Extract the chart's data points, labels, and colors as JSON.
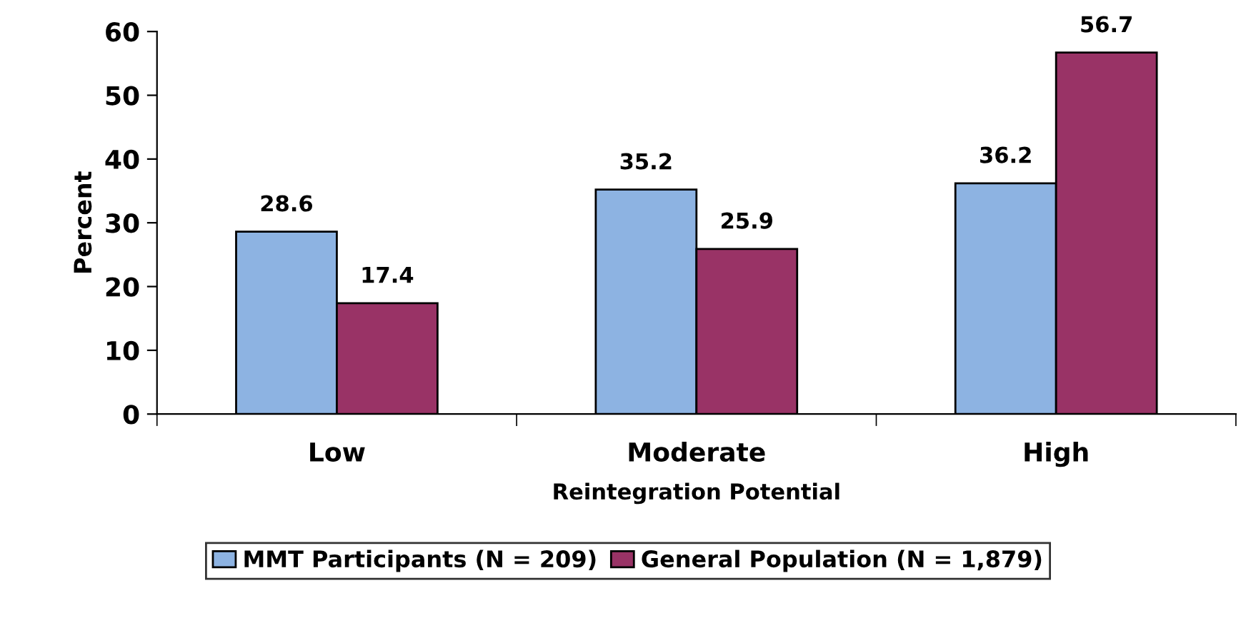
{
  "chart_data": {
    "type": "bar",
    "xlabel": "Reintegration Potential",
    "ylabel": "Percent",
    "categories": [
      "Low",
      "Moderate",
      "High"
    ],
    "series": [
      {
        "name": "MMT Participants (N = 209)",
        "color": "#8db3e2",
        "values": [
          28.6,
          35.2,
          36.2
        ]
      },
      {
        "name": "General Population (N = 1,879)",
        "color": "#993366",
        "values": [
          17.4,
          25.9,
          56.7
        ]
      }
    ],
    "ylim": [
      0,
      60
    ],
    "yticks": [
      0,
      10,
      20,
      30,
      40,
      50,
      60
    ],
    "data_labels": true,
    "grid": false,
    "legend": "bottom"
  }
}
